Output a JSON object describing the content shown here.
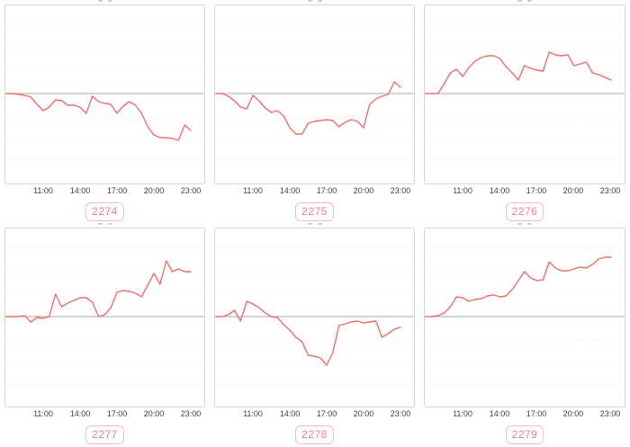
{
  "page": {
    "background": "#ffffff"
  },
  "style": {
    "line_color": "#ee6d6d",
    "baseline_color": "#a9a9a9",
    "grid_color": "#ebebeb",
    "panel_border_color": "#d8d8d8",
    "tick_text_color": "#454545",
    "badge_border_color": "#f6bbc7",
    "badge_text_color": "#ee7e99"
  },
  "chart_data": {
    "type": "line",
    "layout": "2x3 small multiples, one red series per panel, solid gray baseline at 0, faint dotted horizontal gridlines every 25 units, no y-axis labels, legend none",
    "x_times": [
      "08:00",
      "08:30",
      "09:00",
      "09:30",
      "10:00",
      "10:30",
      "11:00",
      "11:30",
      "12:00",
      "12:30",
      "13:00",
      "13:30",
      "14:00",
      "14:30",
      "15:00",
      "15:30",
      "16:00",
      "16:30",
      "17:00",
      "17:30",
      "18:00",
      "18:30",
      "19:00",
      "19:30",
      "20:00",
      "20:30",
      "21:00",
      "21:30",
      "22:00",
      "22:30",
      "23:00"
    ],
    "x_axis_ticks": [
      "11:00",
      "14:00",
      "17:00",
      "20:00",
      "23:00"
    ],
    "xlabel": "",
    "ylabel": "",
    "ylim": [
      -100,
      98
    ],
    "baseline_value": 0,
    "y_unit": "estimated offset from baseline (y-axis unlabeled in screenshot)",
    "charts": [
      {
        "label": "2274",
        "values": [
          0,
          0,
          -1,
          -2,
          -4,
          -12,
          -19,
          -15,
          -7,
          -8,
          -13,
          -13,
          -15,
          -22,
          -3,
          -9,
          -11,
          -12,
          -22,
          -14,
          -9,
          -13,
          -22,
          -37,
          -46,
          -49,
          -49,
          -50,
          -52,
          -35,
          -41
        ]
      },
      {
        "label": "2275",
        "values": [
          0,
          0,
          -3,
          -8,
          -15,
          -17,
          -2,
          -8,
          -16,
          -21,
          -19,
          -25,
          -38,
          -45,
          -45,
          -33,
          -31,
          -30,
          -29,
          -30,
          -37,
          -32,
          -29,
          -31,
          -38,
          -12,
          -6,
          -3,
          -1,
          13,
          7
        ]
      },
      {
        "label": "2276",
        "values": [
          0,
          0,
          0,
          11,
          23,
          27,
          19,
          29,
          36,
          40,
          42,
          42,
          39,
          30,
          23,
          15,
          31,
          28,
          26,
          25,
          46,
          43,
          42,
          43,
          31,
          33,
          35,
          23,
          21,
          18,
          15
        ]
      },
      {
        "label": "2277",
        "values": [
          0,
          0,
          0,
          1,
          -6,
          -1,
          -2,
          0,
          25,
          11,
          15,
          18,
          21,
          21,
          16,
          0,
          2,
          10,
          27,
          29,
          28,
          26,
          22,
          35,
          48,
          36,
          62,
          50,
          53,
          50,
          50
        ]
      },
      {
        "label": "2278",
        "values": [
          0,
          0,
          2,
          7,
          -5,
          17,
          14,
          10,
          4,
          0,
          -1,
          -9,
          -15,
          -23,
          -28,
          -43,
          -44,
          -46,
          -54,
          -40,
          -10,
          -8,
          -6,
          -5,
          -7,
          -6,
          -5,
          -23,
          -19,
          -14,
          -12
        ]
      },
      {
        "label": "2279",
        "values": [
          0,
          0,
          1,
          4,
          11,
          22,
          21,
          17,
          19,
          20,
          23,
          24,
          22,
          23,
          30,
          40,
          50,
          43,
          40,
          41,
          61,
          54,
          51,
          51,
          53,
          55,
          54,
          58,
          64,
          66,
          66
        ]
      }
    ]
  }
}
